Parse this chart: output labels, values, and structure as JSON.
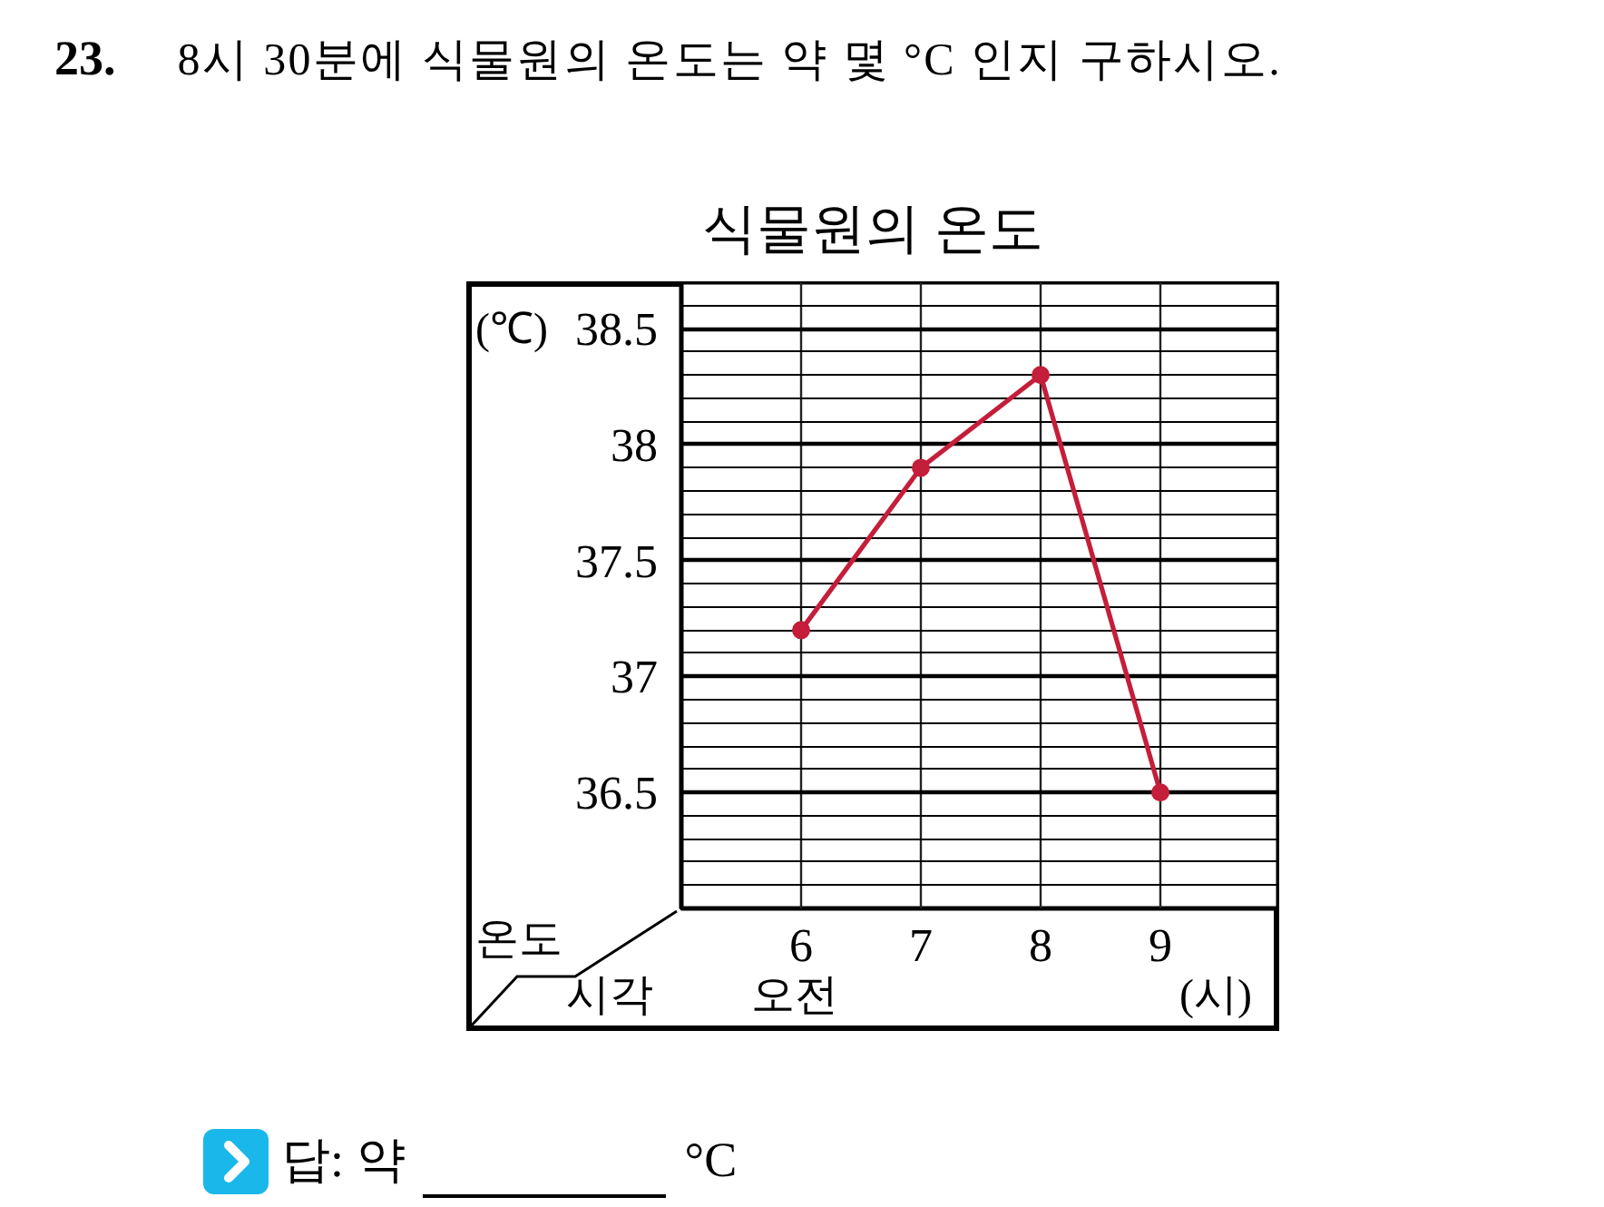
{
  "chart_data": {
    "type": "line",
    "title": "식물원의 온도",
    "xlabel": "(시)",
    "ylabel": "(℃)",
    "annotations": [
      "23.",
      "8시 30분에 식물원의 온도는 약 몇 °C 인지 구하시오.",
      "온도",
      "시각",
      "오전",
      "답: 약",
      "°C"
    ],
    "x": [
      6,
      7,
      8,
      9
    ],
    "xlim": [
      5,
      10
    ],
    "xticks": [
      6,
      7,
      8,
      9
    ],
    "series": [
      {
        "color": "#c41e3a",
        "values": [
          37.2,
          37.9,
          38.3,
          36.5
        ]
      }
    ],
    "ylim": [
      36.0,
      38.7
    ],
    "yticks": [
      36.5,
      37,
      37.5,
      38,
      38.5
    ],
    "grid": true,
    "marker": "circle",
    "line_style": "solid"
  }
}
